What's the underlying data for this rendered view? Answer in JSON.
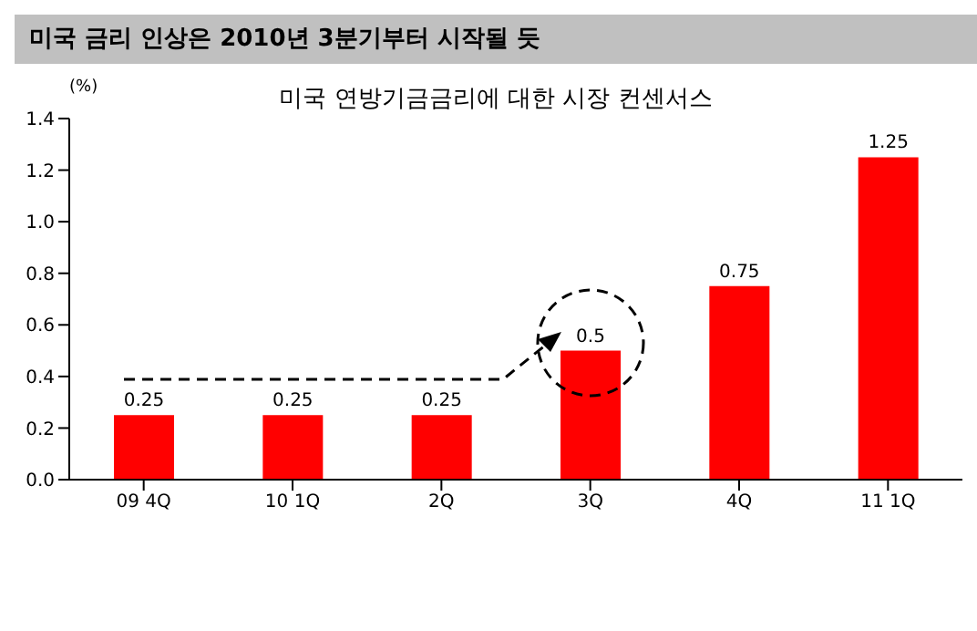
{
  "chart_data": {
    "type": "bar",
    "title": "미국 금리 인상은 2010년 3분기부터 시작될 듯",
    "subtitle": "미국 연방기금금리에 대한 시장 컨센서스",
    "ylabel": "(%)",
    "categories": [
      "09 4Q",
      "10 1Q",
      "2Q",
      "3Q",
      "4Q",
      "11 1Q"
    ],
    "values": [
      0.25,
      0.25,
      0.25,
      0.5,
      0.75,
      1.25
    ],
    "color": "#ff0000",
    "ylim": [
      0,
      1.4
    ],
    "yticks": [
      {
        "value": 0,
        "label": "0.0"
      },
      {
        "value": 0.2,
        "label": "0.2"
      },
      {
        "value": 0.4,
        "label": "0.4"
      },
      {
        "value": 0.6,
        "label": "0.6"
      },
      {
        "value": 0.8,
        "label": "0.8"
      },
      {
        "value": 1,
        "label": "1.0"
      },
      {
        "value": 1.2,
        "label": "1.2"
      },
      {
        "value": 1.4,
        "label": "1.4"
      }
    ],
    "data_labels": true,
    "grid": false,
    "legend": false
  }
}
